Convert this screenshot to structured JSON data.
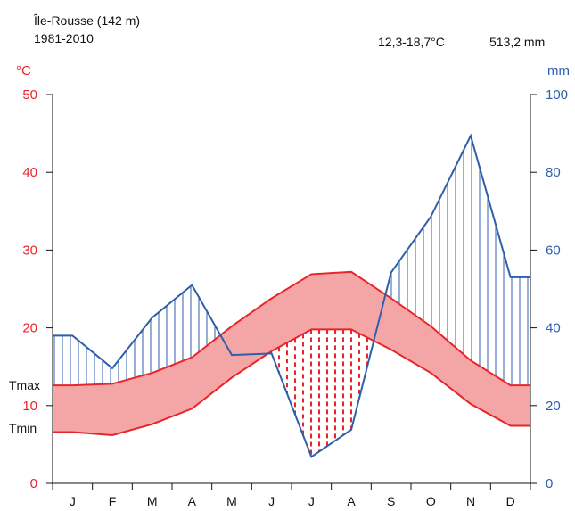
{
  "header": {
    "station": "Île-Rousse (142 m)",
    "period": "1981-2010",
    "temp_range": "12,3-18,7°C",
    "precip_total": "513,2 mm"
  },
  "chart_data": {
    "type": "line",
    "title": "Île-Rousse (142 m)",
    "subtitle": "1981-2010",
    "categories": [
      "J",
      "F",
      "M",
      "A",
      "M",
      "J",
      "J",
      "A",
      "S",
      "O",
      "N",
      "D"
    ],
    "left_axis": {
      "unit": "°C",
      "min": 0,
      "max": 50,
      "ticks": [
        0,
        10,
        20,
        30,
        40,
        50
      ],
      "color": "#e8252b"
    },
    "right_axis": {
      "unit": "mm",
      "min": 0,
      "max": 100,
      "ticks": [
        0,
        20,
        40,
        60,
        80,
        100
      ],
      "color": "#2f5fa8"
    },
    "series": [
      {
        "name": "Tmax",
        "axis": "left",
        "values": [
          12.6,
          12.8,
          14.2,
          16.2,
          20.2,
          23.8,
          26.9,
          27.2,
          23.8,
          20.2,
          15.8,
          12.6
        ]
      },
      {
        "name": "Tmin",
        "axis": "left",
        "values": [
          6.6,
          6.2,
          7.6,
          9.6,
          13.6,
          17.0,
          19.8,
          19.8,
          17.2,
          14.2,
          10.2,
          7.4
        ]
      },
      {
        "name": "",
        "axis": "right",
        "values": [
          38.0,
          29.6,
          42.6,
          51.0,
          33.0,
          33.4,
          6.8,
          13.8,
          54.2,
          68.6,
          89.4,
          53.0
        ]
      }
    ],
    "legend": [
      "Tmax",
      "Tmin"
    ],
    "grid": false
  }
}
